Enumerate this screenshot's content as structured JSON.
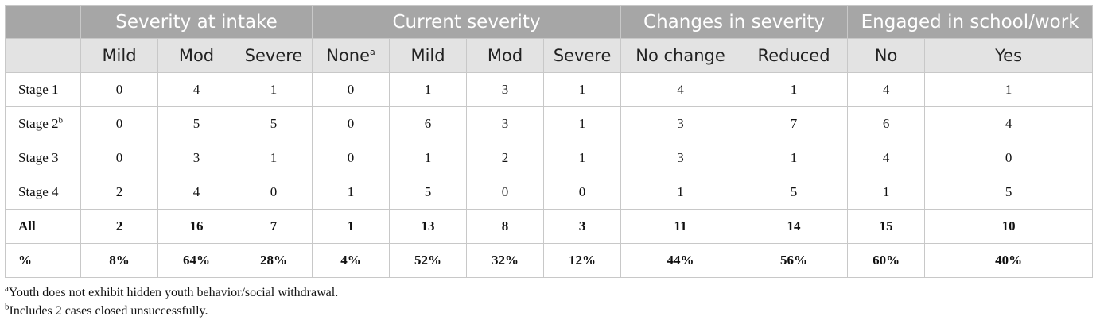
{
  "groups": [
    {
      "label": "",
      "span": 1
    },
    {
      "label": "Severity at intake",
      "span": 3
    },
    {
      "label": "Current severity",
      "span": 4
    },
    {
      "label": "Changes in severity",
      "span": 2
    },
    {
      "label": "Engaged in school/work",
      "span": 2
    }
  ],
  "columns": [
    {
      "label": "",
      "sup": ""
    },
    {
      "label": "Mild",
      "sup": ""
    },
    {
      "label": "Mod",
      "sup": ""
    },
    {
      "label": "Severe",
      "sup": ""
    },
    {
      "label": "None",
      "sup": "a"
    },
    {
      "label": "Mild",
      "sup": ""
    },
    {
      "label": "Mod",
      "sup": ""
    },
    {
      "label": "Severe",
      "sup": ""
    },
    {
      "label": "No change",
      "sup": ""
    },
    {
      "label": "Reduced",
      "sup": ""
    },
    {
      "label": "No",
      "sup": ""
    },
    {
      "label": "Yes",
      "sup": ""
    }
  ],
  "rows": [
    {
      "label": "Stage 1",
      "sup": "",
      "bold": false,
      "cells": [
        "0",
        "4",
        "1",
        "0",
        "1",
        "3",
        "1",
        "4",
        "1",
        "4",
        "1"
      ]
    },
    {
      "label": "Stage 2",
      "sup": "b",
      "bold": false,
      "cells": [
        "0",
        "5",
        "5",
        "0",
        "6",
        "3",
        "1",
        "3",
        "7",
        "6",
        "4"
      ]
    },
    {
      "label": "Stage 3",
      "sup": "",
      "bold": false,
      "cells": [
        "0",
        "3",
        "1",
        "0",
        "1",
        "2",
        "1",
        "3",
        "1",
        "4",
        "0"
      ]
    },
    {
      "label": "Stage 4",
      "sup": "",
      "bold": false,
      "cells": [
        "2",
        "4",
        "0",
        "1",
        "5",
        "0",
        "0",
        "1",
        "5",
        "1",
        "5"
      ]
    },
    {
      "label": "All",
      "sup": "",
      "bold": true,
      "cells": [
        "2",
        "16",
        "7",
        "1",
        "13",
        "8",
        "3",
        "11",
        "14",
        "15",
        "10"
      ]
    },
    {
      "label": "%",
      "sup": "",
      "bold": true,
      "cells": [
        "8%",
        "64%",
        "28%",
        "4%",
        "52%",
        "32%",
        "12%",
        "44%",
        "56%",
        "60%",
        "40%"
      ]
    }
  ],
  "footnotes": [
    {
      "mark": "a",
      "text": "Youth does not exhibit hidden youth behavior/social withdrawal."
    },
    {
      "mark": "b",
      "text": "Includes 2 cases closed unsuccessfully."
    }
  ]
}
